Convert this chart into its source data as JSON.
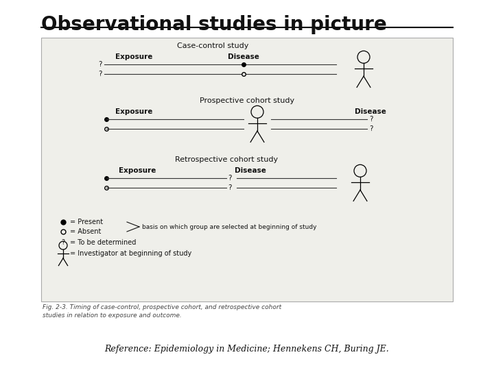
{
  "title": "Observational studies in picture",
  "reference": "Reference: Epidemiology in Medicine; Hennekens CH, Buring JE.",
  "fig_caption": "Fig. 2-3. Timing of case-control, prospective cohort, and retrospective cohort\nstudies in relation to exposure and outcome.",
  "study1_title": "Case-control study",
  "study2_title": "Prospective cohort study",
  "study3_title": "Retrospective cohort study",
  "exposure_label": "Exposure",
  "disease_label": "Disease",
  "legend_present": "= Present",
  "legend_absent": "= Absent",
  "legend_question": "= To be determined",
  "legend_investigator": "= Investigator at beginning of study",
  "legend_basis": "basis on which group are selected at beginning of study",
  "box_facecolor": "#efefea",
  "box_edgecolor": "#aaaaaa",
  "line_color": "#333333",
  "text_color": "#111111"
}
